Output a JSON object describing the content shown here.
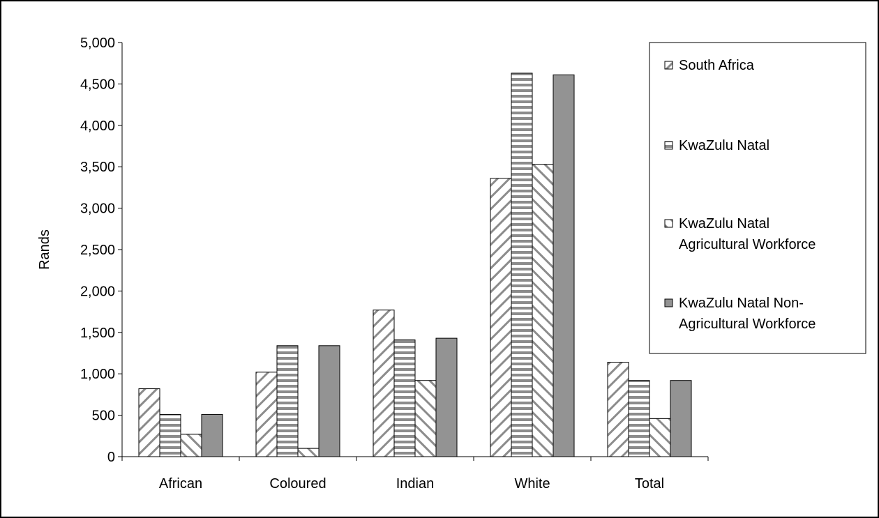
{
  "chart_data": {
    "type": "bar",
    "title": "",
    "xlabel": "",
    "ylabel": "Rands",
    "ylim": [
      0,
      5000
    ],
    "ytick_step": 500,
    "ytick_labels": [
      "0",
      "500",
      "1,000",
      "1,500",
      "2,000",
      "2,500",
      "3,000",
      "3,500",
      "4,000",
      "4,500",
      "5,000"
    ],
    "categories": [
      "African",
      "Coloured",
      "Indian",
      "White",
      "Total"
    ],
    "grid": false,
    "legend_position": "right",
    "series": [
      {
        "name": "South Africa",
        "pattern": "diagonal-up",
        "values": [
          820,
          1020,
          1770,
          3360,
          1140
        ]
      },
      {
        "name": "KwaZulu Natal",
        "pattern": "horizontal",
        "values": [
          510,
          1340,
          1410,
          4630,
          920
        ]
      },
      {
        "name": "KwaZulu Natal Agricultural Workforce",
        "legend_lines": [
          "KwaZulu Natal",
          "Agricultural Workforce"
        ],
        "pattern": "diagonal-down",
        "values": [
          270,
          100,
          920,
          3530,
          460
        ]
      },
      {
        "name": "KwaZulu Natal Non-Agricultural Workforce",
        "legend_lines": [
          "KwaZulu Natal Non-",
          "Agricultural Workforce"
        ],
        "pattern": "solid",
        "values": [
          510,
          1340,
          1430,
          4610,
          920
        ]
      }
    ],
    "colors": {
      "solid_fill": "#939393",
      "stroke": "#000000",
      "hatch": "#8c8c8c"
    }
  }
}
